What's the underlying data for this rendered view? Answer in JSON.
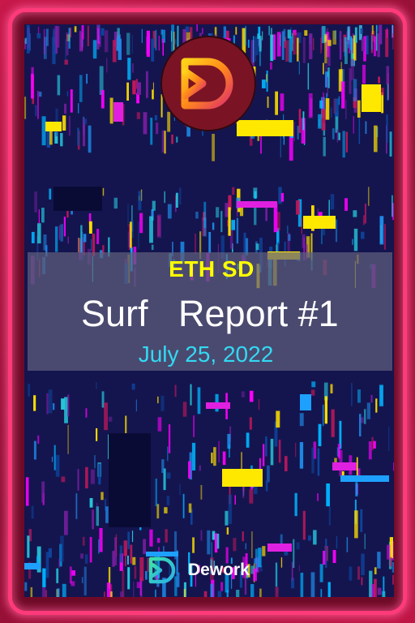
{
  "card": {
    "eyebrow": "ETH SD",
    "title": "Surf   Report #1",
    "date": "July 25, 2022"
  },
  "brand": {
    "name": "Dework",
    "logo_icon": "dework-logo-icon"
  },
  "colors": {
    "frame": "#ff3a7a",
    "background": "#14154f",
    "eyebrow": "#ffff00",
    "title": "#ffffff",
    "date": "#33d9f2",
    "logo_gradient_start": "#ffb21a",
    "logo_gradient_end": "#e0306a"
  }
}
